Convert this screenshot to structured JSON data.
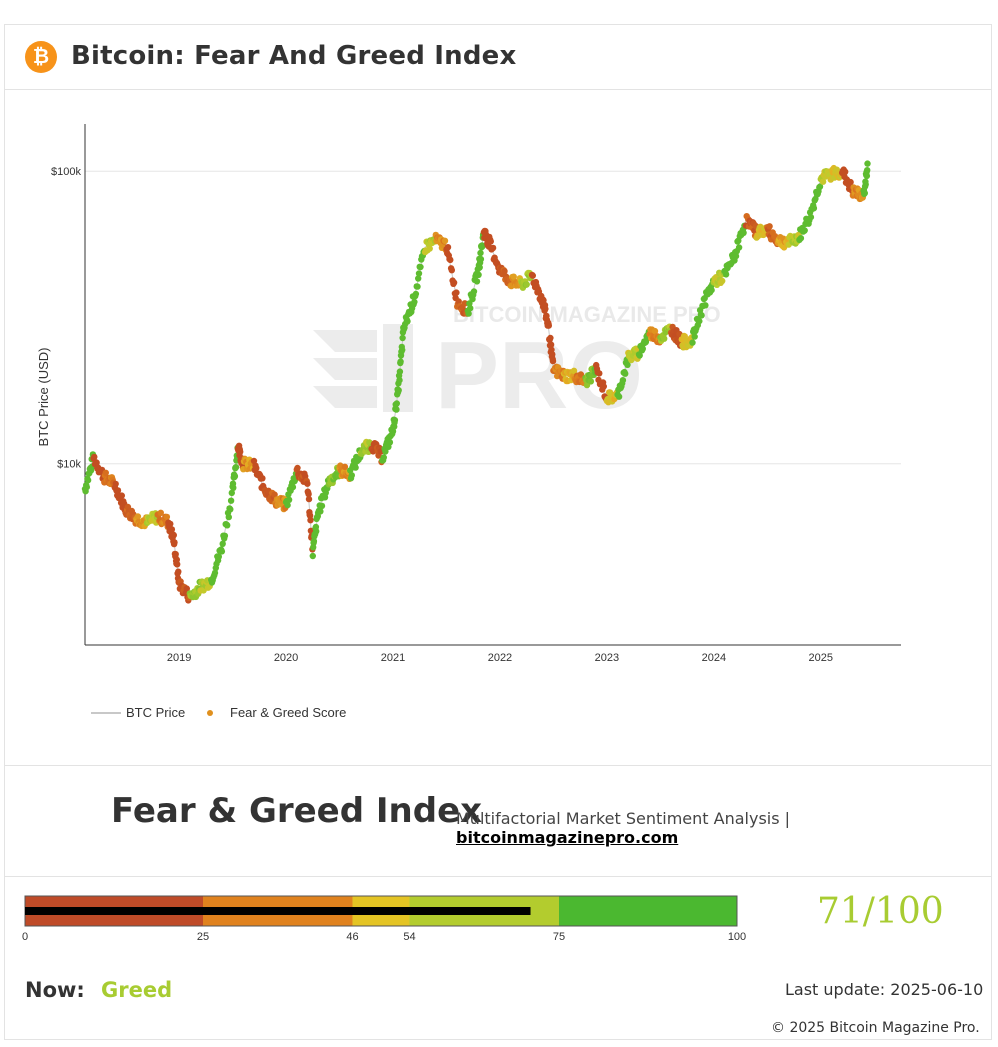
{
  "header": {
    "title": "Bitcoin: Fear And Greed Index",
    "logo_icon": "bitcoin-icon",
    "logo_glyph": "₿"
  },
  "chart_data": {
    "type": "scatter",
    "title": "Bitcoin: Fear And Greed Index",
    "ylabel": "BTC Price (USD)",
    "xlabel": "",
    "y_scale": "log",
    "y_ticks": [
      {
        "value": 10000,
        "label": "$10k"
      },
      {
        "value": 100000,
        "label": "$100k"
      }
    ],
    "x_ticks": [
      "2019",
      "2020",
      "2021",
      "2022",
      "2023",
      "2024",
      "2025"
    ],
    "xlim": [
      2018.12,
      2025.75
    ],
    "ylim": [
      2400,
      145000
    ],
    "legend": [
      {
        "name": "BTC Price",
        "kind": "line",
        "color": "#c8c8c8"
      },
      {
        "name": "Fear & Greed Score",
        "kind": "dot",
        "color": "#e0901e"
      }
    ],
    "watermark": "BITCOIN MAGAZINE PRO",
    "series": [
      {
        "name": "BTC Price",
        "x": [
          2018.12,
          2018.2,
          2018.3,
          2018.4,
          2018.5,
          2018.6,
          2018.7,
          2018.8,
          2018.9,
          2018.95,
          2019.0,
          2019.1,
          2019.2,
          2019.3,
          2019.4,
          2019.5,
          2019.55,
          2019.6,
          2019.7,
          2019.8,
          2019.9,
          2020.0,
          2020.1,
          2020.2,
          2020.25,
          2020.3,
          2020.4,
          2020.5,
          2020.6,
          2020.7,
          2020.8,
          2020.9,
          2021.0,
          2021.05,
          2021.1,
          2021.2,
          2021.3,
          2021.4,
          2021.5,
          2021.6,
          2021.7,
          2021.8,
          2021.85,
          2021.9,
          2022.0,
          2022.1,
          2022.2,
          2022.3,
          2022.4,
          2022.45,
          2022.5,
          2022.6,
          2022.7,
          2022.8,
          2022.9,
          2023.0,
          2023.1,
          2023.2,
          2023.3,
          2023.4,
          2023.5,
          2023.6,
          2023.7,
          2023.8,
          2023.9,
          2024.0,
          2024.1,
          2024.2,
          2024.3,
          2024.4,
          2024.5,
          2024.6,
          2024.7,
          2024.8,
          2024.9,
          2025.0,
          2025.1,
          2025.2,
          2025.3,
          2025.4,
          2025.44
        ],
        "y": [
          8200,
          10500,
          9000,
          8500,
          7000,
          6500,
          6300,
          6600,
          6300,
          5500,
          3900,
          3500,
          3800,
          4000,
          5200,
          8000,
          11500,
          10000,
          9800,
          8200,
          7500,
          7200,
          9500,
          8600,
          5000,
          6800,
          8700,
          9500,
          9200,
          11000,
          11700,
          10500,
          13000,
          18000,
          29000,
          37000,
          55000,
          58000,
          56000,
          36000,
          33000,
          46000,
          62000,
          57000,
          46000,
          42000,
          41000,
          44000,
          36000,
          30000,
          21000,
          20000,
          20000,
          19000,
          21000,
          16800,
          17000,
          23000,
          24000,
          28000,
          27000,
          29000,
          26000,
          26500,
          35000,
          42000,
          44000,
          52000,
          68000,
          62000,
          63000,
          58000,
          57000,
          60000,
          70000,
          94000,
          98000,
          100000,
          85000,
          82000,
          105000
        ]
      },
      {
        "name": "Fear & Greed Score",
        "note": "dots coloured by score (0 = extreme fear red, 100 = extreme greed green)"
      }
    ]
  },
  "summary": {
    "title": "Fear & Greed Index",
    "subtitle": "Multifactorial Market Sentiment Analysis",
    "separator": "|",
    "link_text": "bitcoinmagazinepro.com"
  },
  "gauge": {
    "score": 71,
    "score_text": "71/100",
    "max": 100,
    "tick_labels": [
      "0",
      "25",
      "46",
      "54",
      "75",
      "100"
    ],
    "tick_values": [
      0,
      25,
      46,
      54,
      75,
      100
    ],
    "segments": [
      {
        "from": 0,
        "to": 25,
        "color": "#bf4b28"
      },
      {
        "from": 25,
        "to": 46,
        "color": "#e0821e"
      },
      {
        "from": 46,
        "to": 54,
        "color": "#e4c424"
      },
      {
        "from": 54,
        "to": 75,
        "color": "#b3cc2e"
      },
      {
        "from": 75,
        "to": 100,
        "color": "#4bb830"
      }
    ]
  },
  "status": {
    "now_label": "Now:",
    "now_value": "Greed",
    "now_color": "#a8cc32",
    "last_update": "Last update: 2025-06-10",
    "copyright": "© 2025 Bitcoin Magazine Pro."
  }
}
